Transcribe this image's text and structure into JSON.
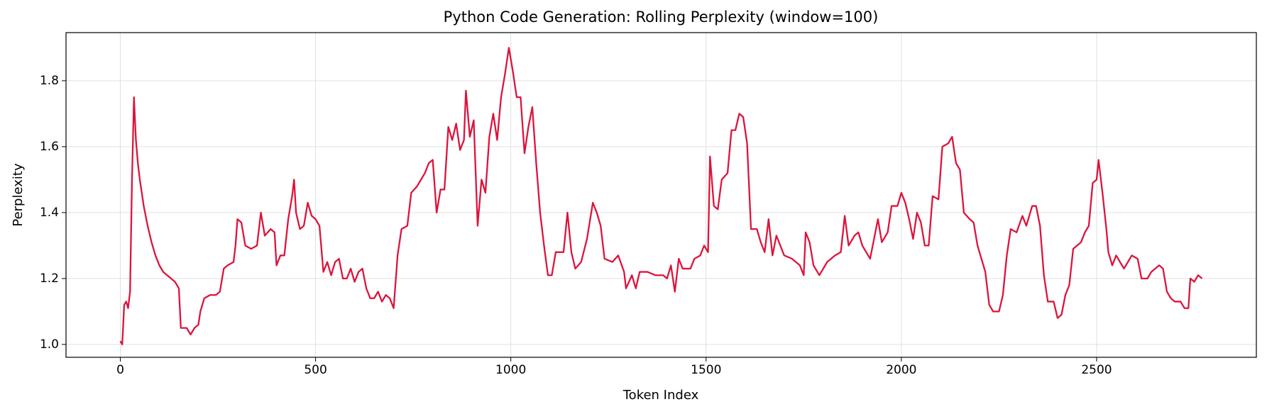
{
  "chart_data": {
    "type": "line",
    "title": "Python Code Generation: Rolling Perplexity (window=100)",
    "x_label": "Token Index",
    "y_label": "Perplexity",
    "xlim": [
      -139,
      2909
    ],
    "ylim": [
      0.961,
      1.946
    ],
    "xticks": [
      0,
      500,
      1000,
      1500,
      2000,
      2500
    ],
    "yticks": [
      {
        "value": 1.0,
        "label": "1.0"
      },
      {
        "value": 1.2,
        "label": "1.2"
      },
      {
        "value": 1.4,
        "label": "1.4"
      },
      {
        "value": 1.6,
        "label": "1.6"
      },
      {
        "value": 1.8,
        "label": "1.8"
      }
    ],
    "grid": true,
    "series": [
      {
        "color": "#dc143c",
        "x": [
          0,
          5,
          10,
          15,
          20,
          25,
          30,
          35,
          40,
          45,
          50,
          55,
          60,
          70,
          80,
          90,
          100,
          110,
          120,
          130,
          140,
          150,
          155,
          170,
          180,
          190,
          200,
          205,
          215,
          230,
          245,
          255,
          265,
          275,
          290,
          295,
          300,
          310,
          320,
          335,
          350,
          360,
          370,
          385,
          395,
          400,
          410,
          420,
          430,
          440,
          445,
          450,
          460,
          470,
          480,
          490,
          500,
          510,
          520,
          530,
          540,
          550,
          560,
          570,
          580,
          590,
          600,
          610,
          620,
          630,
          640,
          650,
          660,
          670,
          680,
          690,
          700,
          710,
          720,
          735,
          745,
          760,
          770,
          780,
          790,
          800,
          810,
          820,
          830,
          840,
          850,
          860,
          870,
          880,
          885,
          895,
          905,
          915,
          925,
          935,
          945,
          955,
          965,
          975,
          985,
          995,
          1005,
          1015,
          1025,
          1035,
          1045,
          1055,
          1065,
          1075,
          1085,
          1095,
          1105,
          1115,
          1135,
          1145,
          1155,
          1165,
          1180,
          1195,
          1210,
          1220,
          1230,
          1240,
          1260,
          1275,
          1290,
          1295,
          1310,
          1320,
          1330,
          1350,
          1370,
          1390,
          1400,
          1410,
          1420,
          1430,
          1440,
          1460,
          1470,
          1485,
          1495,
          1505,
          1510,
          1520,
          1530,
          1540,
          1555,
          1565,
          1575,
          1585,
          1595,
          1605,
          1615,
          1630,
          1640,
          1650,
          1660,
          1670,
          1680,
          1690,
          1700,
          1720,
          1740,
          1750,
          1755,
          1765,
          1775,
          1790,
          1810,
          1830,
          1845,
          1855,
          1865,
          1880,
          1890,
          1900,
          1910,
          1920,
          1930,
          1940,
          1950,
          1965,
          1975,
          1990,
          2000,
          2010,
          2020,
          2030,
          2040,
          2050,
          2060,
          2070,
          2080,
          2095,
          2105,
          2120,
          2130,
          2140,
          2150,
          2160,
          2175,
          2185,
          2195,
          2205,
          2215,
          2225,
          2235,
          2250,
          2260,
          2270,
          2280,
          2295,
          2310,
          2320,
          2335,
          2345,
          2355,
          2365,
          2375,
          2390,
          2400,
          2410,
          2420,
          2430,
          2440,
          2450,
          2460,
          2470,
          2480,
          2490,
          2500,
          2505,
          2515,
          2525,
          2530,
          2540,
          2550,
          2560,
          2570,
          2580,
          2590,
          2605,
          2615,
          2630,
          2640,
          2660,
          2670,
          2680,
          2690,
          2700,
          2715,
          2725,
          2735,
          2740,
          2750,
          2760,
          2770
        ],
        "values": [
          1.01,
          1.0,
          1.12,
          1.13,
          1.11,
          1.16,
          1.5,
          1.75,
          1.62,
          1.55,
          1.5,
          1.46,
          1.42,
          1.36,
          1.31,
          1.27,
          1.24,
          1.22,
          1.21,
          1.2,
          1.19,
          1.17,
          1.05,
          1.05,
          1.03,
          1.05,
          1.06,
          1.1,
          1.14,
          1.15,
          1.15,
          1.16,
          1.23,
          1.24,
          1.25,
          1.3,
          1.38,
          1.37,
          1.3,
          1.29,
          1.3,
          1.4,
          1.33,
          1.35,
          1.34,
          1.24,
          1.27,
          1.27,
          1.38,
          1.45,
          1.5,
          1.4,
          1.35,
          1.36,
          1.43,
          1.39,
          1.38,
          1.36,
          1.22,
          1.25,
          1.21,
          1.25,
          1.26,
          1.2,
          1.2,
          1.23,
          1.19,
          1.22,
          1.23,
          1.17,
          1.14,
          1.14,
          1.16,
          1.13,
          1.15,
          1.14,
          1.11,
          1.27,
          1.35,
          1.36,
          1.46,
          1.48,
          1.5,
          1.52,
          1.55,
          1.56,
          1.4,
          1.47,
          1.47,
          1.66,
          1.62,
          1.67,
          1.59,
          1.62,
          1.77,
          1.63,
          1.68,
          1.36,
          1.5,
          1.46,
          1.63,
          1.7,
          1.62,
          1.75,
          1.82,
          1.9,
          1.83,
          1.75,
          1.75,
          1.58,
          1.66,
          1.72,
          1.55,
          1.4,
          1.3,
          1.21,
          1.21,
          1.28,
          1.28,
          1.4,
          1.28,
          1.23,
          1.25,
          1.32,
          1.43,
          1.4,
          1.36,
          1.26,
          1.25,
          1.27,
          1.22,
          1.17,
          1.21,
          1.17,
          1.22,
          1.22,
          1.21,
          1.21,
          1.2,
          1.24,
          1.16,
          1.26,
          1.23,
          1.23,
          1.26,
          1.27,
          1.3,
          1.28,
          1.57,
          1.42,
          1.41,
          1.5,
          1.52,
          1.65,
          1.65,
          1.7,
          1.69,
          1.61,
          1.35,
          1.35,
          1.31,
          1.28,
          1.38,
          1.27,
          1.33,
          1.3,
          1.27,
          1.26,
          1.24,
          1.21,
          1.34,
          1.31,
          1.24,
          1.21,
          1.25,
          1.27,
          1.28,
          1.39,
          1.3,
          1.33,
          1.34,
          1.3,
          1.28,
          1.26,
          1.32,
          1.38,
          1.31,
          1.34,
          1.42,
          1.42,
          1.46,
          1.43,
          1.38,
          1.32,
          1.4,
          1.37,
          1.3,
          1.3,
          1.45,
          1.44,
          1.6,
          1.61,
          1.63,
          1.55,
          1.53,
          1.4,
          1.38,
          1.37,
          1.3,
          1.26,
          1.22,
          1.12,
          1.1,
          1.1,
          1.15,
          1.27,
          1.35,
          1.34,
          1.39,
          1.36,
          1.42,
          1.42,
          1.36,
          1.21,
          1.13,
          1.13,
          1.08,
          1.09,
          1.15,
          1.18,
          1.29,
          1.3,
          1.31,
          1.34,
          1.36,
          1.49,
          1.5,
          1.56,
          1.46,
          1.35,
          1.28,
          1.24,
          1.27,
          1.25,
          1.23,
          1.25,
          1.27,
          1.26,
          1.2,
          1.2,
          1.22,
          1.24,
          1.23,
          1.16,
          1.14,
          1.13,
          1.13,
          1.11,
          1.11,
          1.2,
          1.19,
          1.21,
          1.2
        ]
      }
    ]
  }
}
